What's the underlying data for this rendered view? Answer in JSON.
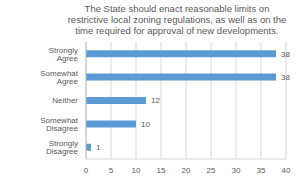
{
  "chart_data": {
    "type": "bar",
    "title": "The State should enact reasonable limits on restrictive local zoning regulations, as well as on the time required for approval of new developments.",
    "categories": [
      "Strongly Agree",
      "Somewhat Agree",
      "Neither",
      "Somewhat Disagree",
      "Strongly Disagree"
    ],
    "values": [
      38,
      38,
      12,
      10,
      1
    ],
    "color": "#5b9bd5",
    "orientation": "horizontal",
    "xlim": [
      0,
      40
    ],
    "xticks": [
      0,
      5,
      10,
      15,
      20,
      25,
      30,
      35,
      40
    ],
    "grid": true,
    "data_labels": true
  }
}
